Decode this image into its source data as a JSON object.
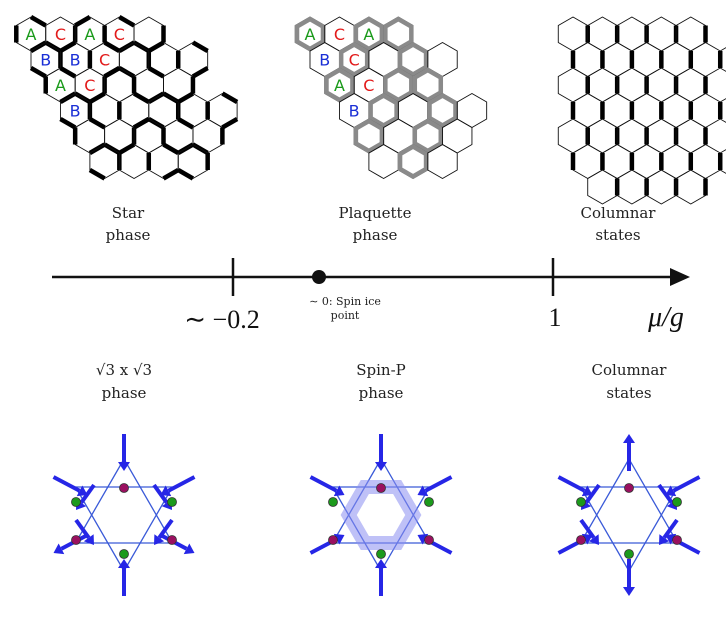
{
  "top_labels": [
    {
      "line1": "Star",
      "line2": "phase"
    },
    {
      "line1": "Plaquette",
      "line2": "phase"
    },
    {
      "line1": "Columnar",
      "line2": "states"
    }
  ],
  "axis": {
    "tick_left": "∼ −0.2",
    "spin_ice_line1": "∼ 0: Spin ice",
    "spin_ice_line2": "point",
    "tick_right": "1",
    "axis_label": "μ/g"
  },
  "bottom_labels": [
    {
      "line1": "√3 x √3",
      "line2": "phase"
    },
    {
      "line1": "Spin-P",
      "line2": "phase"
    },
    {
      "line1": "Columnar",
      "line2": "states"
    }
  ],
  "sublattice_labels": {
    "a": "A",
    "b": "B",
    "c": "C",
    "colors": {
      "a": "#1a9a1a",
      "b": "#1a2fd6",
      "c": "#e21a1a"
    }
  },
  "colors": {
    "arrow": "#2626e6",
    "triangle": "#3a5ad8",
    "green_dot": "#1c9a1c",
    "purple_dot": "#9a1060",
    "plaquette_highlight": "#8b8ef0",
    "gray_plaquette": "#8a8a8a"
  }
}
